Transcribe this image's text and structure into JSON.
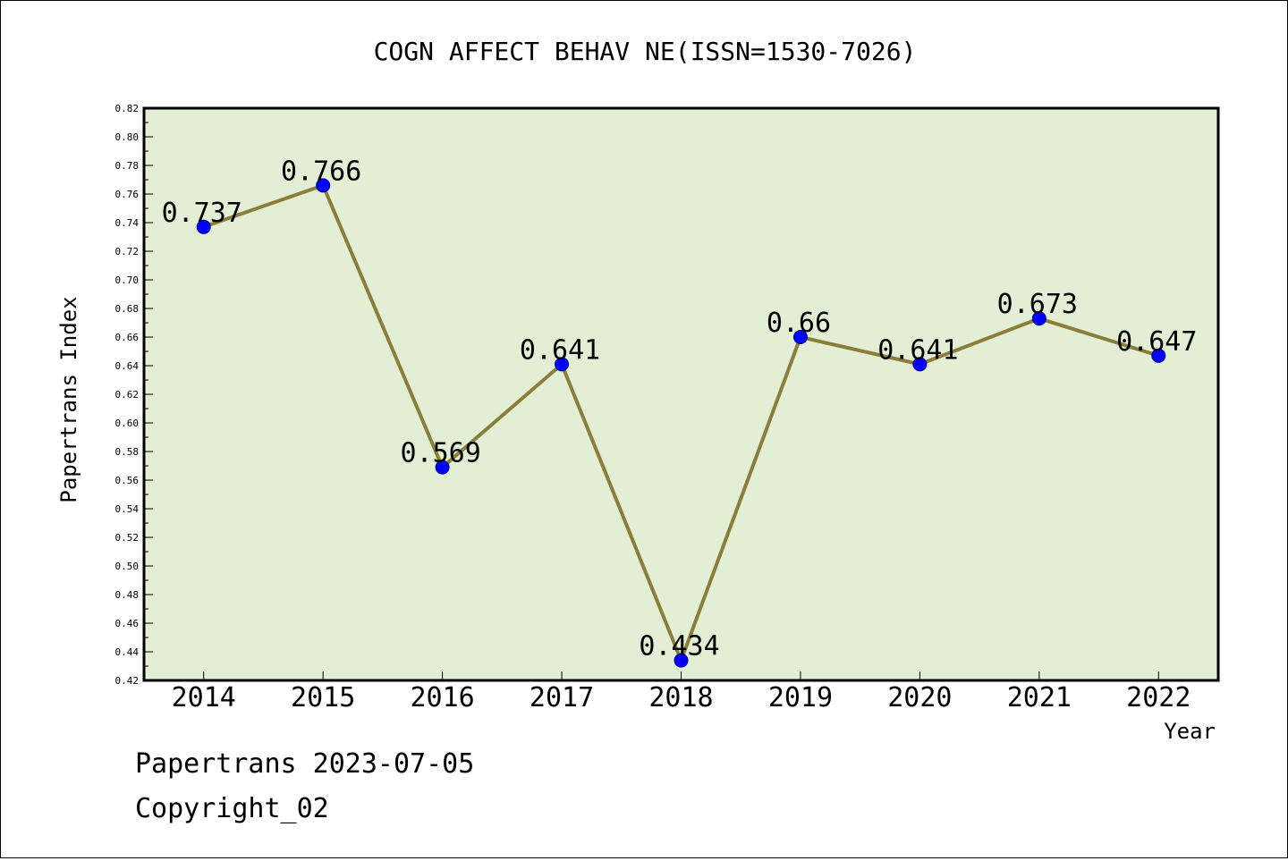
{
  "chart_data": {
    "type": "line",
    "title": "COGN AFFECT BEHAV NE(ISSN=1530-7026)",
    "xlabel": "Year",
    "ylabel": "Papertrans Index",
    "categories": [
      "2014",
      "2015",
      "2016",
      "2017",
      "2018",
      "2019",
      "2020",
      "2021",
      "2022"
    ],
    "series": [
      {
        "values": [
          0.737,
          0.766,
          0.569,
          0.641,
          0.434,
          0.66,
          0.641,
          0.673,
          0.647
        ],
        "labels": [
          "0.737",
          "0.766",
          "0.569",
          "0.641",
          "0.434",
          "0.66",
          "0.641",
          "0.673",
          "0.647"
        ],
        "line_color": "#8b7d3a",
        "marker_color": "#0000ff"
      }
    ],
    "ylim": [
      0.42,
      0.82
    ],
    "yticks": [
      "0.42",
      "0.44",
      "0.46",
      "0.48",
      "0.50",
      "0.52",
      "0.54",
      "0.56",
      "0.58",
      "0.60",
      "0.62",
      "0.64",
      "0.66",
      "0.68",
      "0.70",
      "0.72",
      "0.74",
      "0.76",
      "0.78",
      "0.80",
      "0.82"
    ],
    "grid": false,
    "plot_background": "#e2efd5"
  },
  "footer": {
    "date_line": "Papertrans 2023-07-05",
    "copyright_line": "Copyright_02"
  }
}
